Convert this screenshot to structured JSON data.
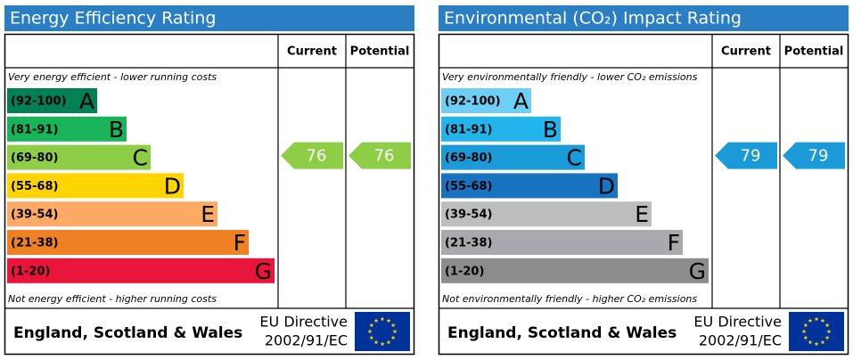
{
  "panels": [
    {
      "title": "Energy Efficiency Rating",
      "columns": [
        "Current",
        "Potential"
      ],
      "top_note": "Very energy efficient - lower running costs",
      "bottom_note": "Not energy efficient - higher running costs",
      "bands": [
        {
          "range": "(92-100)",
          "letter": "A",
          "color": "#008054"
        },
        {
          "range": "(81-91)",
          "letter": "B",
          "color": "#19b459"
        },
        {
          "range": "(69-80)",
          "letter": "C",
          "color": "#8dce46"
        },
        {
          "range": "(55-68)",
          "letter": "D",
          "color": "#ffd500"
        },
        {
          "range": "(39-54)",
          "letter": "E",
          "color": "#fcaa65"
        },
        {
          "range": "(21-38)",
          "letter": "F",
          "color": "#ef8023"
        },
        {
          "range": "(1-20)",
          "letter": "G",
          "color": "#e9153b"
        }
      ],
      "current": 76,
      "potential": 76,
      "region": "England, Scotland & Wales",
      "directive": [
        "EU Directive",
        "2002/91/EC"
      ]
    },
    {
      "title": "Environmental (CO₂) Impact Rating",
      "columns": [
        "Current",
        "Potential"
      ],
      "top_note": "Very environmentally friendly - lower CO₂ emissions",
      "bottom_note": "Not environmentally friendly - higher CO₂ emissions",
      "bands": [
        {
          "range": "(92-100)",
          "letter": "A",
          "color": "#6dcff6"
        },
        {
          "range": "(81-91)",
          "letter": "B",
          "color": "#22b5eb"
        },
        {
          "range": "(69-80)",
          "letter": "C",
          "color": "#1a9ad6"
        },
        {
          "range": "(55-68)",
          "letter": "D",
          "color": "#1874c1"
        },
        {
          "range": "(39-54)",
          "letter": "E",
          "color": "#bbbdbf"
        },
        {
          "range": "(21-38)",
          "letter": "F",
          "color": "#a7a9ac"
        },
        {
          "range": "(1-20)",
          "letter": "G",
          "color": "#8c8c8c"
        }
      ],
      "current": 79,
      "potential": 79,
      "region": "England, Scotland & Wales",
      "directive": [
        "EU Directive",
        "2002/91/EC"
      ]
    }
  ]
}
